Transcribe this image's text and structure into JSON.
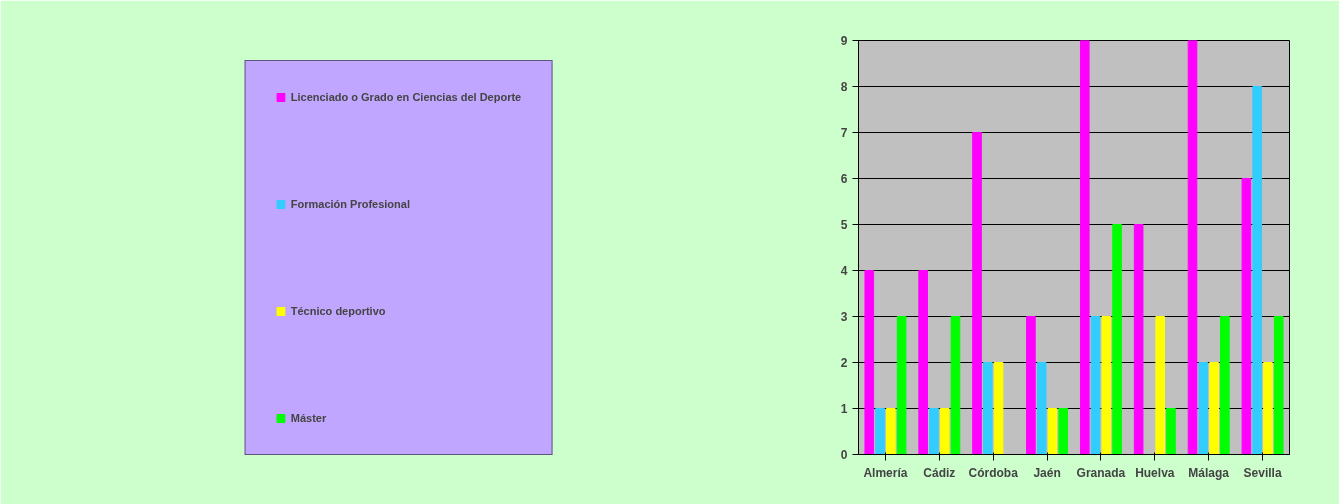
{
  "chart_data": {
    "type": "bar",
    "categories": [
      "Almería",
      "Cádiz",
      "Córdoba",
      "Jaén",
      "Granada",
      "Huelva",
      "Málaga",
      "Sevilla"
    ],
    "series": [
      {
        "name": "Licenciado o Grado en Ciencias del Deporte",
        "color": "#ff00ff",
        "values": [
          4,
          4,
          7,
          3,
          9,
          5,
          9,
          6
        ]
      },
      {
        "name": "Formación Profesional",
        "color": "#33ccff",
        "values": [
          1,
          1,
          2,
          2,
          3,
          0,
          2,
          8
        ]
      },
      {
        "name": "Técnico deportivo",
        "color": "#ffff00",
        "values": [
          1,
          1,
          2,
          1,
          3,
          3,
          2,
          2
        ]
      },
      {
        "name": "Máster",
        "color": "#00ff00",
        "values": [
          3,
          3,
          0,
          1,
          5,
          1,
          3,
          3
        ]
      }
    ],
    "ylim": [
      0,
      9
    ],
    "yticks": [
      0,
      1,
      2,
      3,
      4,
      5,
      6,
      7,
      8,
      9
    ],
    "grid": "y",
    "legend": "left"
  }
}
